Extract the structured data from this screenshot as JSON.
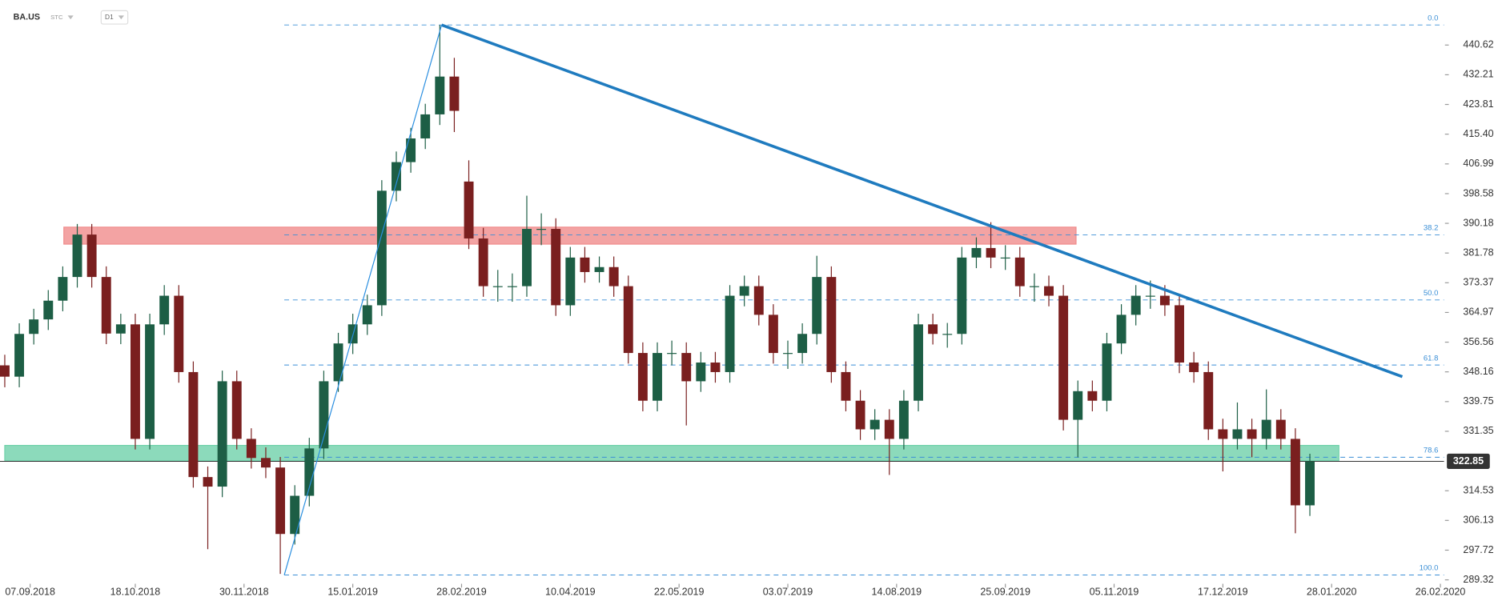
{
  "header": {
    "symbol": "BA.US",
    "mode": "STC",
    "interval": "D1"
  },
  "chart_data": {
    "type": "candlestick",
    "x": [
      0,
      4,
      8,
      12,
      16,
      20,
      24,
      28,
      32,
      36,
      40,
      44,
      48,
      52,
      56,
      60,
      64,
      68,
      72,
      76,
      80,
      84,
      88,
      92,
      96,
      100,
      104,
      108,
      112,
      116,
      120,
      124,
      128,
      132,
      136,
      140,
      144,
      148,
      152,
      156,
      160,
      164,
      168,
      172,
      176,
      180,
      184,
      188,
      192,
      196,
      200,
      204,
      208,
      212,
      216,
      220,
      224,
      228,
      232,
      236,
      240,
      244,
      248,
      252,
      256,
      260,
      264,
      268,
      272,
      276,
      280,
      284,
      288,
      292,
      296,
      300,
      304,
      308,
      312,
      316,
      320,
      324,
      328,
      332,
      336,
      340,
      344,
      348,
      352,
      356,
      360
    ],
    "open": [
      350,
      346.8,
      358.9,
      363,
      368.3,
      375,
      387,
      375,
      359,
      361.6,
      329.2,
      361.6,
      369.7,
      348.1,
      318.4,
      315.7,
      345.5,
      329.2,
      323.8,
      321.1,
      302.3,
      313.1,
      326.5,
      345.5,
      356.2,
      361.6,
      367,
      399.4,
      407.5,
      414.2,
      421,
      431.7,
      402,
      385.9,
      372.4,
      372.4,
      372.4,
      388.6,
      388.6,
      367,
      380.5,
      376.4,
      377.8,
      372.4,
      353.5,
      340,
      353.5,
      353.5,
      345.5,
      350.8,
      348.1,
      369.7,
      372.4,
      364.3,
      353.5,
      353.5,
      358.9,
      375,
      348.1,
      340,
      331.9,
      334.6,
      329.2,
      340,
      361.6,
      358.9,
      358.9,
      380.5,
      383.2,
      380.5,
      380.5,
      372.4,
      372.4,
      369.7,
      334.6,
      342.7,
      340,
      356.2,
      364.3,
      369.7,
      369.7,
      367,
      350.8,
      348.1,
      331.9,
      329.2,
      331.9,
      329.2,
      334.6,
      329.2,
      310.4
    ],
    "high": [
      353,
      361.9,
      366,
      371.3,
      378,
      390,
      390,
      378,
      364.6,
      364.6,
      364.6,
      372.7,
      372.7,
      351.1,
      321.4,
      348.5,
      348.5,
      332.2,
      326.8,
      324.1,
      316.1,
      329.5,
      348.5,
      359.2,
      364.6,
      370,
      402.4,
      410.5,
      417.2,
      424,
      446.3,
      437,
      408,
      388.9,
      377,
      376,
      398,
      393,
      391.6,
      383.5,
      383.5,
      380.8,
      380.8,
      375.4,
      356.5,
      356.5,
      357,
      356.5,
      353.8,
      353.8,
      372.7,
      375.4,
      375.4,
      367.3,
      357,
      361.9,
      381,
      378,
      351.1,
      343,
      337.6,
      337.6,
      343,
      364.6,
      364.6,
      362,
      383.5,
      386.2,
      390.5,
      384,
      383.5,
      376,
      375.4,
      372.7,
      345.7,
      345.7,
      359.2,
      367.3,
      372.7,
      374,
      372.7,
      370,
      353.8,
      351.1,
      334.9,
      339.5,
      334.9,
      343.2,
      337.6,
      332.2,
      325
    ],
    "low": [
      343.8,
      343.8,
      355.9,
      360,
      365.3,
      372,
      372,
      356,
      356,
      326.2,
      326.2,
      358.6,
      345.1,
      315.4,
      298,
      312.7,
      326.2,
      320.8,
      318.1,
      291,
      299.3,
      310.1,
      323.5,
      342.5,
      353.2,
      358.6,
      364,
      396.4,
      404.5,
      411.2,
      418,
      416,
      382.9,
      369.4,
      368,
      368,
      369.4,
      384,
      364,
      364,
      373.4,
      373.4,
      369.4,
      350.5,
      337,
      337,
      350,
      333,
      342.5,
      345.1,
      345.1,
      366.7,
      361.3,
      350.5,
      349,
      350.5,
      355.9,
      345.1,
      337,
      328.9,
      328.9,
      319,
      326.2,
      337,
      355.9,
      355,
      355.9,
      377.5,
      377.5,
      377,
      369.4,
      368,
      366.7,
      331.6,
      324,
      337,
      337,
      353.2,
      361.3,
      366,
      364,
      347.8,
      345.1,
      328.9,
      320,
      326.2,
      324,
      326.2,
      326.2,
      302.5,
      307.4
    ],
    "close": [
      346.8,
      358.9,
      363,
      368.3,
      375,
      387,
      375,
      359,
      361.6,
      329.2,
      361.6,
      369.7,
      348.1,
      318.4,
      315.7,
      345.5,
      329.2,
      323.8,
      321.1,
      302.3,
      313.1,
      326.5,
      345.5,
      356.2,
      361.6,
      367,
      399.4,
      407.5,
      414.2,
      421,
      431.7,
      422,
      385.9,
      372.4,
      372.4,
      372.4,
      388.6,
      388.6,
      367,
      380.5,
      376.4,
      377.8,
      372.4,
      353.5,
      340,
      353.5,
      353.5,
      345.5,
      350.8,
      348.1,
      369.7,
      372.4,
      364.3,
      353.5,
      353.5,
      358.9,
      375,
      348.1,
      340,
      331.9,
      334.6,
      329.2,
      340,
      361.6,
      358.9,
      358.9,
      380.5,
      383.2,
      380.5,
      380.5,
      372.4,
      372.4,
      369.7,
      334.6,
      342.7,
      340,
      356.2,
      364.3,
      369.7,
      369.7,
      367,
      350.8,
      348.1,
      331.9,
      329.2,
      331.9,
      329.2,
      334.6,
      329.2,
      310.4,
      322.85
    ],
    "up_color": "#1d5e45",
    "down_color": "#7a1f1f",
    "xlim": [
      0,
      397
    ],
    "xticks": [
      {
        "value": 7,
        "label": "07.09.2018"
      },
      {
        "value": 36,
        "label": "18.10.2018"
      },
      {
        "value": 66,
        "label": "30.11.2018"
      },
      {
        "value": 96,
        "label": "15.01.2019"
      },
      {
        "value": 126,
        "label": "28.02.2019"
      },
      {
        "value": 156,
        "label": "10.04.2019"
      },
      {
        "value": 186,
        "label": "22.05.2019"
      },
      {
        "value": 216,
        "label": "03.07.2019"
      },
      {
        "value": 246,
        "label": "14.08.2019"
      },
      {
        "value": 276,
        "label": "25.09.2019"
      },
      {
        "value": 306,
        "label": "05.11.2019"
      },
      {
        "value": 336,
        "label": "17.12.2019"
      },
      {
        "value": 366,
        "label": "28.01.2020"
      },
      {
        "value": 396,
        "label": "26.02.2020"
      }
    ],
    "ylim": [
      288.2,
      453.3
    ],
    "yticks": [
      440.62,
      432.21,
      423.81,
      {
        "value": 415.4,
        "label": "415.40"
      },
      406.99,
      398.58,
      390.18,
      381.78,
      373.37,
      364.97,
      356.56,
      348.16,
      339.75,
      331.35,
      314.53,
      306.13,
      297.72,
      289.32
    ],
    "last_price": 322.85,
    "fib_levels": [
      {
        "value": 446.3,
        "label": "0.0"
      },
      {
        "value": 386.9,
        "label": "38.2"
      },
      {
        "value": 368.5,
        "label": "50.0"
      },
      {
        "value": 350.1,
        "label": "61.8"
      },
      {
        "value": 324.0,
        "label": "78.6"
      },
      {
        "value": 290.7,
        "label": "100.0"
      }
    ],
    "zones": [
      {
        "x": [
          16.3,
          295.5
        ],
        "y": [
          384.3,
          389.1
        ],
        "color": "#f08c8c"
      },
      {
        "x": [
          0,
          368
        ],
        "y": [
          323.0,
          327.35
        ],
        "color": "#6fd1aa"
      }
    ],
    "trendlines": [
      {
        "x": [
          120.5,
          385.5
        ],
        "y": [
          446.3,
          346.8
        ],
        "color": "#1f7bbf",
        "width": 3
      },
      {
        "x": [
          77.1,
          120.5
        ],
        "y": [
          290.7,
          446.3
        ],
        "color": "#2b8fe0",
        "width": 1
      }
    ]
  }
}
